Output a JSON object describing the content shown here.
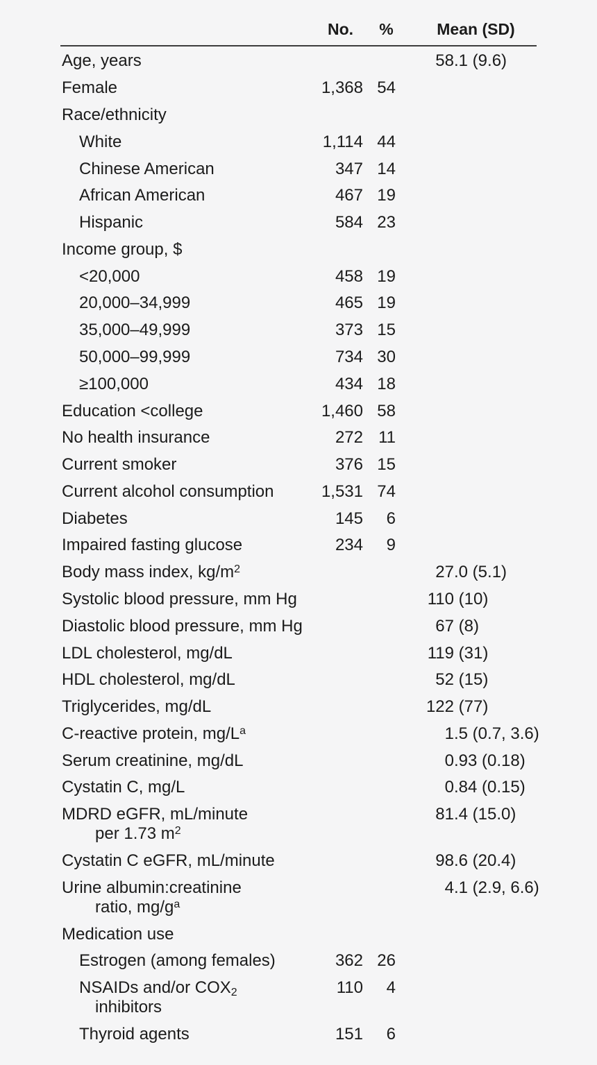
{
  "colors": {
    "background": "#f5f5f6",
    "text": "#1b1b1b",
    "header_rule": "#3c3c3c"
  },
  "table": {
    "columns": {
      "no_label": "No.",
      "pct_label": "%",
      "mean_label": "Mean (SD)"
    },
    "rows": [
      {
        "label": "Age, years",
        "indent": 0,
        "no": "",
        "pct": "",
        "mean": "58.1 (9.6)"
      },
      {
        "label": "Female",
        "indent": 0,
        "no": "1,368",
        "pct": "54",
        "mean": ""
      },
      {
        "label": "Race/ethnicity",
        "indent": 0,
        "no": "",
        "pct": "",
        "mean": ""
      },
      {
        "label": "White",
        "indent": 1,
        "no": "1,114",
        "pct": "44",
        "mean": ""
      },
      {
        "label": "Chinese American",
        "indent": 1,
        "no": "347",
        "pct": "14",
        "mean": ""
      },
      {
        "label": "African American",
        "indent": 1,
        "no": "467",
        "pct": "19",
        "mean": ""
      },
      {
        "label": "Hispanic",
        "indent": 1,
        "no": "584",
        "pct": "23",
        "mean": ""
      },
      {
        "label": "Income group, $",
        "indent": 0,
        "no": "",
        "pct": "",
        "mean": ""
      },
      {
        "label": "<20,000",
        "indent": 1,
        "no": "458",
        "pct": "19",
        "mean": ""
      },
      {
        "label": "20,000–34,999",
        "indent": 1,
        "no": "465",
        "pct": "19",
        "mean": ""
      },
      {
        "label": "35,000–49,999",
        "indent": 1,
        "no": "373",
        "pct": "15",
        "mean": ""
      },
      {
        "label": "50,000–99,999",
        "indent": 1,
        "no": "734",
        "pct": "30",
        "mean": ""
      },
      {
        "label": "≥100,000",
        "indent": 1,
        "no": "434",
        "pct": "18",
        "mean": ""
      },
      {
        "label": "Education <college",
        "indent": 0,
        "no": "1,460",
        "pct": "58",
        "mean": ""
      },
      {
        "label": "No health insurance",
        "indent": 0,
        "no": "272",
        "pct": "11",
        "mean": ""
      },
      {
        "label": "Current smoker",
        "indent": 0,
        "no": "376",
        "pct": "15",
        "mean": ""
      },
      {
        "label": "Current alcohol consumption",
        "indent": 0,
        "no": "1,531",
        "pct": "74",
        "mean": ""
      },
      {
        "label": "Diabetes",
        "indent": 0,
        "no": "145",
        "pct": "6",
        "mean": ""
      },
      {
        "label": "Impaired fasting glucose",
        "indent": 0,
        "no": "234",
        "pct": "9",
        "mean": ""
      },
      {
        "label": "Body mass index, kg/m",
        "sup": "2",
        "indent": 0,
        "no": "",
        "pct": "",
        "mean": "27.0 (5.1)"
      },
      {
        "label": "Systolic blood pressure, mm Hg",
        "indent": 0,
        "no": "",
        "pct": "",
        "mean": "110 (10)"
      },
      {
        "label": "Diastolic blood pressure, mm Hg",
        "indent": 0,
        "no": "",
        "pct": "",
        "mean": "67 (8)"
      },
      {
        "label": "LDL cholesterol, mg/dL",
        "indent": 0,
        "no": "",
        "pct": "",
        "mean": "119 (31)"
      },
      {
        "label": "HDL cholesterol, mg/dL",
        "indent": 0,
        "no": "",
        "pct": "",
        "mean": "52 (15)"
      },
      {
        "label": "Triglycerides, mg/dL",
        "indent": 0,
        "no": "",
        "pct": "",
        "mean": "122 (77)"
      },
      {
        "label": "C-reactive protein, mg/L",
        "sup": "a",
        "indent": 0,
        "no": "",
        "pct": "",
        "mean": "1.5 (0.7, 3.6)"
      },
      {
        "label": "Serum creatinine, mg/dL",
        "indent": 0,
        "no": "",
        "pct": "",
        "mean": "0.93 (0.18)"
      },
      {
        "label": "Cystatin C, mg/L",
        "indent": 0,
        "no": "",
        "pct": "",
        "mean": "0.84 (0.15)"
      },
      {
        "label": "MDRD eGFR, mL/minute",
        "label2": "per 1.73 m",
        "sup2": "2",
        "indent": 0,
        "no": "",
        "pct": "",
        "mean": "81.4 (15.0)"
      },
      {
        "label": "Cystatin C eGFR, mL/minute",
        "indent": 0,
        "no": "",
        "pct": "",
        "mean": "98.6 (20.4)"
      },
      {
        "label": "Urine albumin:creatinine",
        "label2": "ratio, mg/g",
        "sup2": "a",
        "indent": 0,
        "no": "",
        "pct": "",
        "mean": "4.1 (2.9, 6.6)"
      },
      {
        "label": "Medication use",
        "indent": 0,
        "no": "",
        "pct": "",
        "mean": ""
      },
      {
        "label": "Estrogen (among females)",
        "indent": 1,
        "no": "362",
        "pct": "26",
        "mean": ""
      },
      {
        "label": "NSAIDs and/or COX",
        "sub": "2",
        "label2": "inhibitors",
        "indent": 1,
        "no": "110",
        "pct": "4",
        "mean": ""
      },
      {
        "label": "Thyroid agents",
        "indent": 1,
        "no": "151",
        "pct": "6",
        "mean": ""
      }
    ]
  }
}
